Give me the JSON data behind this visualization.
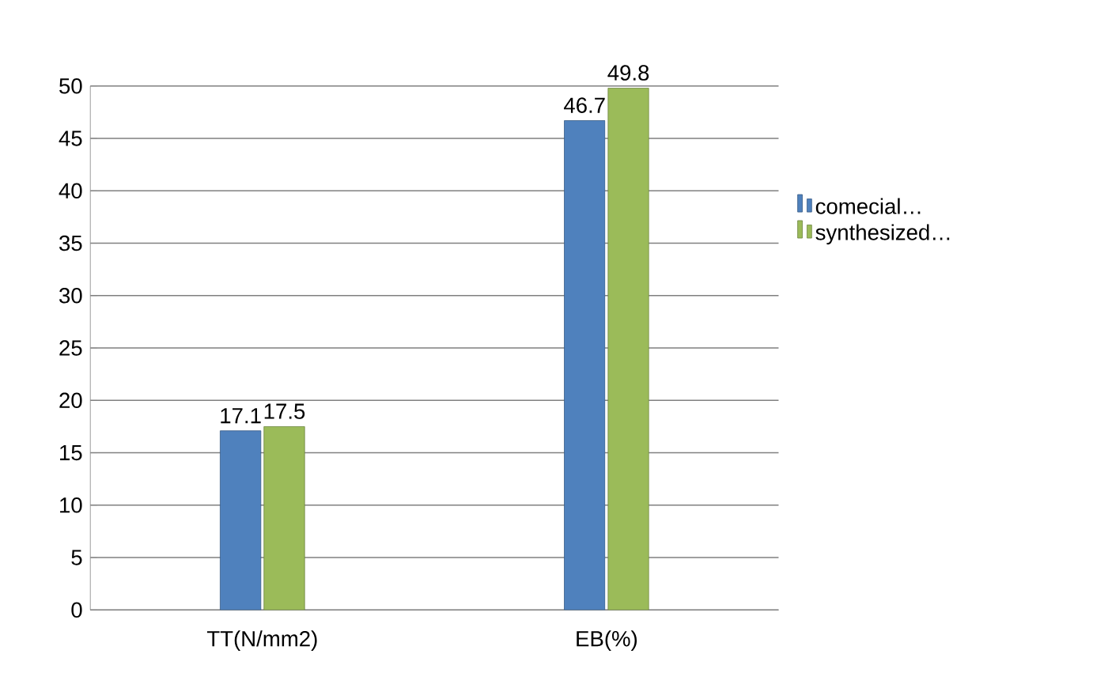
{
  "chart_data": {
    "type": "bar",
    "categories": [
      "TT(N/mm2)",
      "EB(%)"
    ],
    "series": [
      {
        "name": "comecial…",
        "color": "#4f81bd",
        "values": [
          17.1,
          46.7
        ]
      },
      {
        "name": "synthesized…",
        "color": "#9bbb59",
        "values": [
          17.5,
          49.8
        ]
      }
    ],
    "ylim": [
      0,
      50
    ],
    "yticks": [
      0,
      5,
      10,
      15,
      20,
      25,
      30,
      35,
      40,
      45,
      50
    ],
    "grid": "y",
    "legend": "right",
    "data_labels": true
  }
}
